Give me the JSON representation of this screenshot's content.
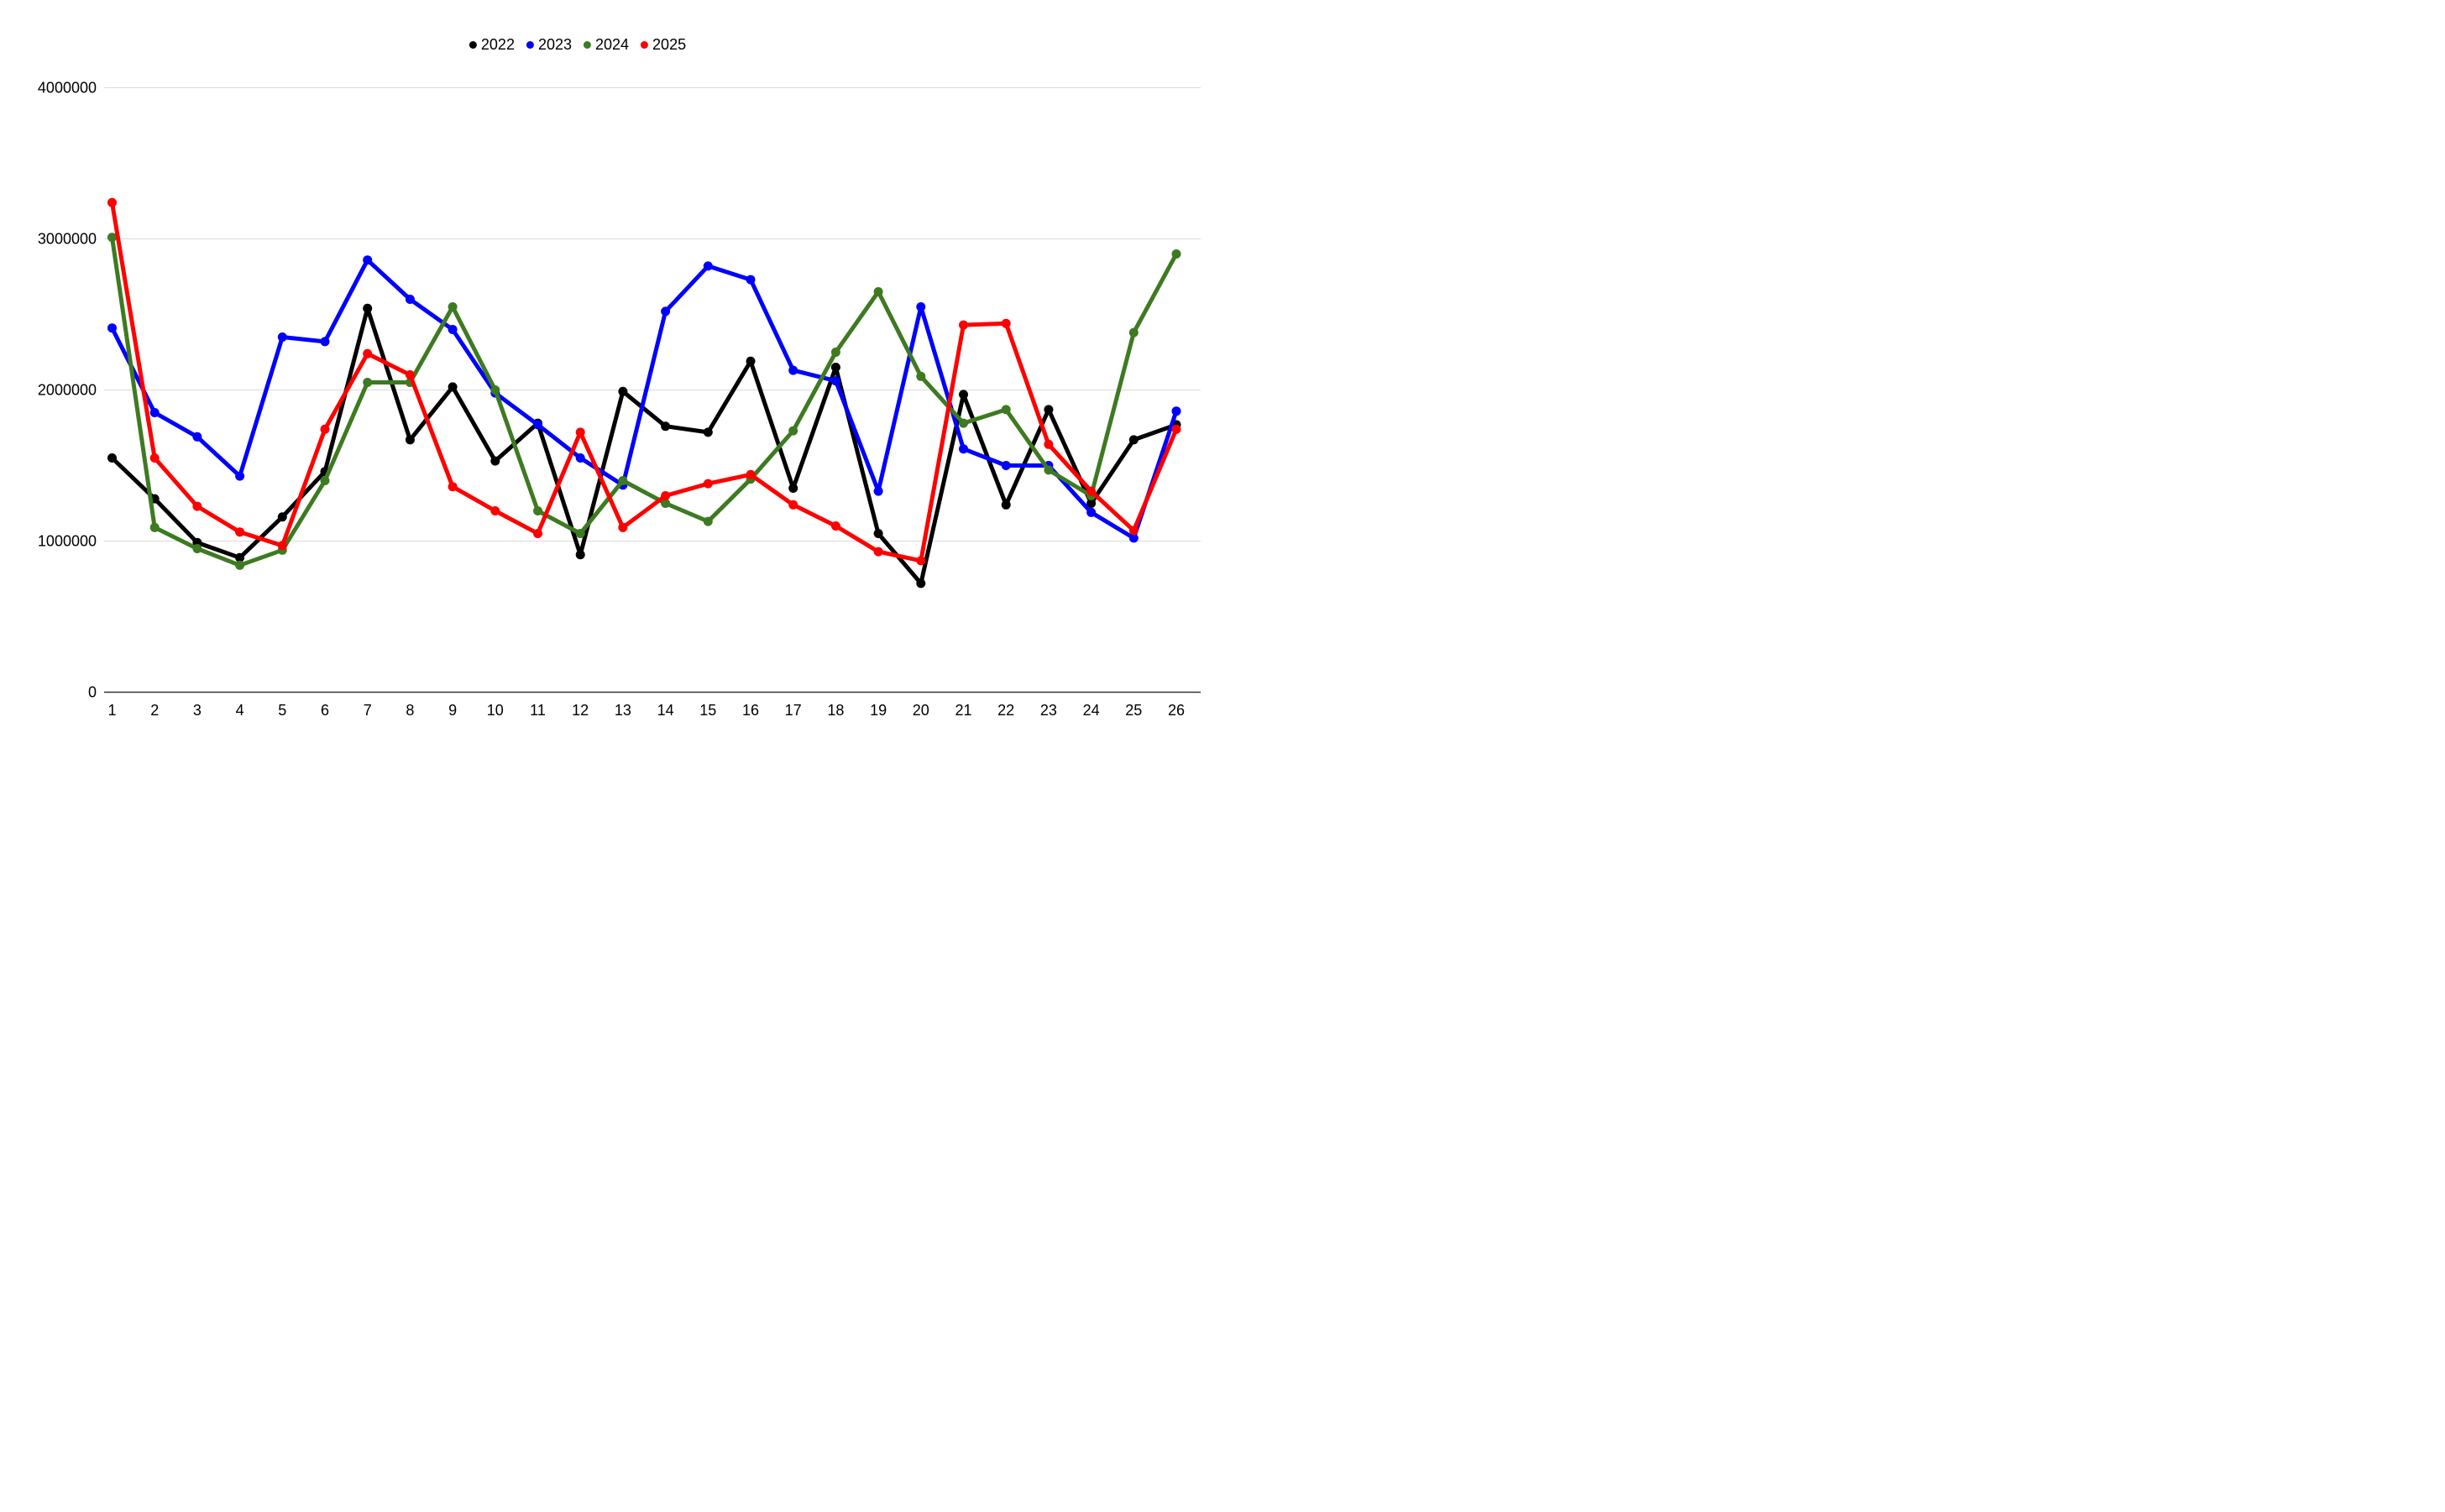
{
  "chart_data": {
    "type": "line",
    "title": "",
    "xlabel": "",
    "ylabel": "",
    "x": [
      1,
      2,
      3,
      4,
      5,
      6,
      7,
      8,
      9,
      10,
      11,
      12,
      13,
      14,
      15,
      16,
      17,
      18,
      19,
      20,
      21,
      22,
      23,
      24,
      25,
      26
    ],
    "series": [
      {
        "name": "2022",
        "color": "#000000",
        "values": [
          1550000,
          1280000,
          990000,
          890000,
          1160000,
          1460000,
          2540000,
          1670000,
          2020000,
          1530000,
          1780000,
          910000,
          1990000,
          1760000,
          1720000,
          2190000,
          1350000,
          2150000,
          1050000,
          720000,
          1970000,
          1240000,
          1870000,
          1250000,
          1670000,
          1770000
        ]
      },
      {
        "name": "2023",
        "color": "#0000ff",
        "values": [
          2410000,
          1850000,
          1690000,
          1430000,
          2350000,
          2320000,
          2860000,
          2600000,
          2400000,
          1980000,
          1770000,
          1550000,
          1370000,
          2520000,
          2820000,
          2730000,
          2130000,
          2060000,
          1330000,
          2550000,
          1610000,
          1500000,
          1500000,
          1190000,
          1020000,
          1860000
        ]
      },
      {
        "name": "2024",
        "color": "#3d7a21",
        "values": [
          3010000,
          1090000,
          950000,
          840000,
          940000,
          1400000,
          2050000,
          2050000,
          2550000,
          2000000,
          1200000,
          1050000,
          1400000,
          1250000,
          1130000,
          1410000,
          1730000,
          2250000,
          2650000,
          2090000,
          1780000,
          1870000,
          1470000,
          1300000,
          2380000,
          2900000
        ]
      },
      {
        "name": "2025",
        "color": "#ff0000",
        "values": [
          3240000,
          1550000,
          1230000,
          1060000,
          970000,
          1740000,
          2240000,
          2100000,
          1360000,
          1200000,
          1050000,
          1720000,
          1090000,
          1300000,
          1380000,
          1440000,
          1240000,
          1100000,
          930000,
          870000,
          2430000,
          2440000,
          1640000,
          1330000,
          1070000,
          1740000
        ]
      }
    ],
    "ylim": [
      0,
      4000000
    ],
    "yticks": [
      0,
      1000000,
      2000000,
      3000000,
      4000000
    ],
    "ytick_labels": [
      "0",
      "1000000",
      "2000000",
      "3000000",
      "4000000"
    ],
    "grid": true,
    "legend_position": "top-center",
    "gridline_color": "#dadada",
    "axis_line_color": "#333333",
    "text_color": "#000000",
    "background_color": "#ffffff"
  }
}
